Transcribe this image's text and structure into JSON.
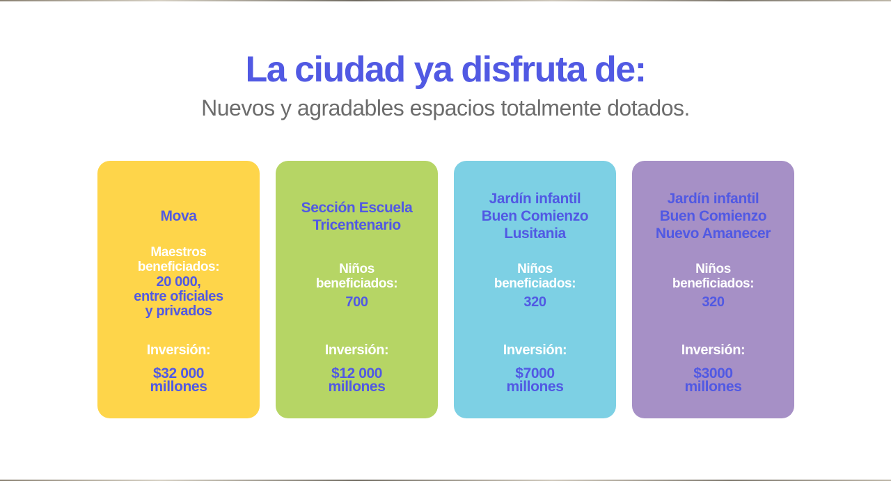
{
  "heading": {
    "title": "La ciudad ya disfruta de:",
    "subtitle": "Nuevos y agradables espacios totalmente dotados."
  },
  "colors": {
    "title": "#5159e3",
    "subtitle": "#6c6c6c",
    "card_yellow": "#fed54a",
    "card_green": "#b6d565",
    "card_cyan": "#7dd0e4",
    "card_purple": "#a690c6"
  },
  "cards": [
    {
      "name": "Mova",
      "beneficiaries_label": "Maestros\nbeneficiados:",
      "beneficiaries_value": "20 000,\nentre oficiales\ny privados",
      "investment_label": "Inversión:",
      "investment_value": "$32 000\nmillones"
    },
    {
      "name": "Sección Escuela\nTricentenario",
      "beneficiaries_label": "Niños\nbeneficiados:",
      "beneficiaries_value": "700",
      "investment_label": "Inversión:",
      "investment_value": "$12 000\nmillones"
    },
    {
      "name": "Jardín infantil\nBuen Comienzo\nLusitania",
      "beneficiaries_label": "Niños\nbeneficiados:",
      "beneficiaries_value": "320",
      "investment_label": "Inversión:",
      "investment_value": "$7000\nmillones"
    },
    {
      "name": "Jardín infantil\nBuen Comienzo\nNuevo Amanecer",
      "beneficiaries_label": "Niños\nbeneficiados:",
      "beneficiaries_value": "320",
      "investment_label": "Inversión:",
      "investment_value": "$3000\nmillones"
    }
  ]
}
